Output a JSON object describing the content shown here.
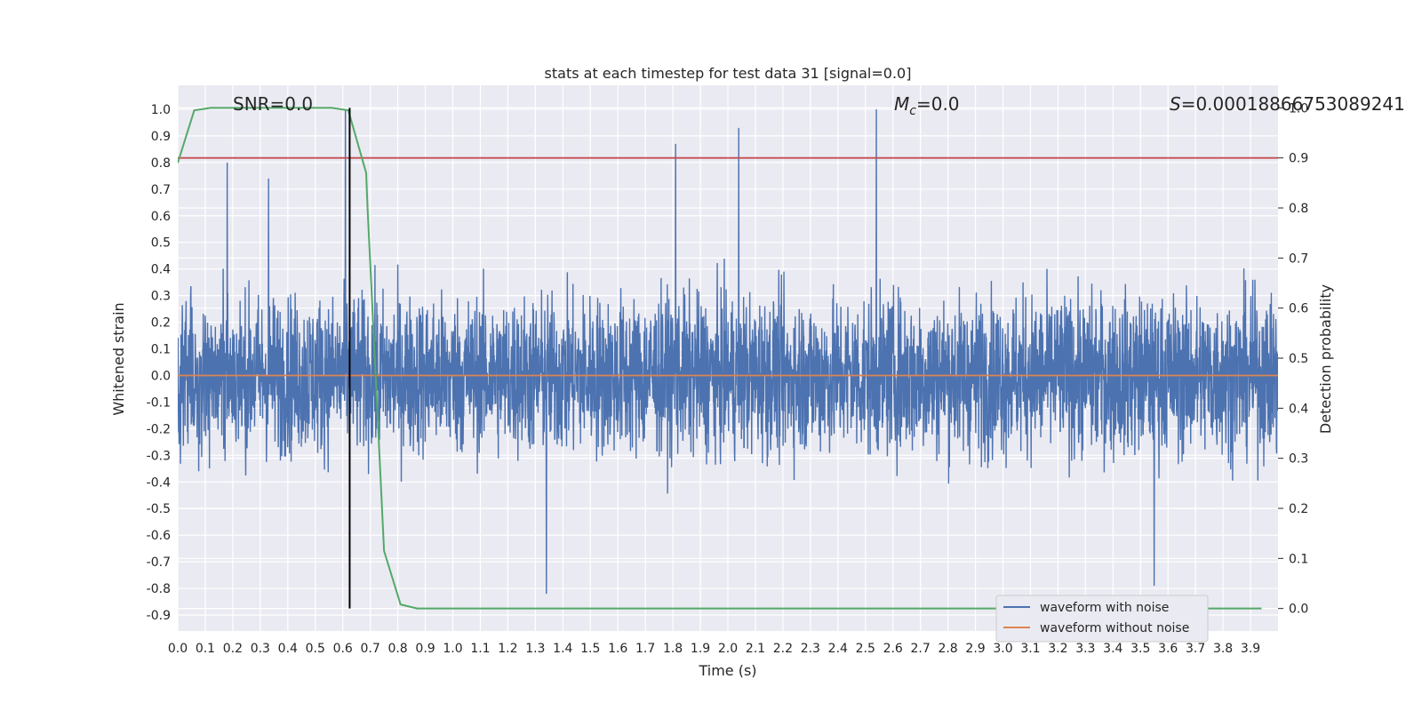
{
  "chart_data": {
    "type": "line",
    "title": "stats at each timestep for test data 31 [signal=0.0]",
    "xlabel": "Time (s)",
    "ylabel": "Whitened strain",
    "y2label": "Detection probability",
    "xlim": [
      0.0,
      4.0
    ],
    "ylim": [
      -0.96,
      1.09
    ],
    "y2lim": [
      -0.045,
      1.045
    ],
    "x_ticks": [
      "0.0",
      "0.1",
      "0.2",
      "0.3",
      "0.4",
      "0.5",
      "0.6",
      "0.7",
      "0.8",
      "0.9",
      "1.0",
      "1.1",
      "1.2",
      "1.3",
      "1.4",
      "1.5",
      "1.6",
      "1.7",
      "1.8",
      "1.9",
      "2.0",
      "2.1",
      "2.2",
      "2.3",
      "2.4",
      "2.5",
      "2.6",
      "2.7",
      "2.8",
      "2.9",
      "3.0",
      "3.1",
      "3.2",
      "3.3",
      "3.4",
      "3.5",
      "3.6",
      "3.7",
      "3.8",
      "3.9"
    ],
    "y_ticks": [
      "1.0",
      "0.9",
      "0.8",
      "0.7",
      "0.6",
      "0.5",
      "0.4",
      "0.3",
      "0.2",
      "0.1",
      "0.0",
      "-0.1",
      "-0.2",
      "-0.3",
      "-0.4",
      "-0.5",
      "-0.6",
      "-0.7",
      "-0.8",
      "-0.9"
    ],
    "y2_ticks": [
      "1.0",
      "0.9",
      "0.8",
      "0.7",
      "0.6",
      "0.5",
      "0.4",
      "0.3",
      "0.2",
      "0.1",
      "0.0"
    ],
    "grid": true,
    "legend_position": "bottom-right",
    "series": [
      {
        "name": "waveform with noise",
        "axis": "left",
        "color": "#4c72b0",
        "noise_amplitude": 0.42,
        "notable_peaks": [
          {
            "x": 0.18,
            "y": 0.8
          },
          {
            "x": 0.33,
            "y": 0.74
          },
          {
            "x": 0.61,
            "y": 1.0
          },
          {
            "x": 1.81,
            "y": 0.87
          },
          {
            "x": 2.04,
            "y": 0.93
          },
          {
            "x": 2.54,
            "y": 1.0
          },
          {
            "x": 1.34,
            "y": -0.82
          },
          {
            "x": 3.55,
            "y": -0.79
          }
        ]
      },
      {
        "name": "waveform without noise",
        "axis": "left",
        "color": "#dd8452",
        "constant": 0.0
      },
      {
        "name": "",
        "axis": "right",
        "color": "#55a868",
        "x": [
          0.0,
          0.06,
          0.12,
          0.2,
          0.3,
          0.4,
          0.5,
          0.56,
          0.62,
          0.685,
          0.69,
          0.72,
          0.75,
          0.81,
          0.87,
          0.93,
          3.94
        ],
        "values": [
          0.89,
          0.995,
          1.0,
          1.0,
          1.0,
          1.0,
          1.0,
          1.0,
          0.995,
          0.87,
          0.8,
          0.46,
          0.115,
          0.008,
          0.0,
          0.0,
          0.0
        ]
      },
      {
        "name": "",
        "axis": "right",
        "color": "#c44e52",
        "constant": 0.9
      }
    ],
    "marker": {
      "x": 0.625,
      "color": "#000000"
    },
    "annotations": [
      {
        "id": "snr",
        "text": "SNR=0.0"
      },
      {
        "id": "mc",
        "base": "M",
        "sub": "c",
        "text": "=0.0"
      },
      {
        "id": "s",
        "base": "S",
        "text": "=0.00018866753089241"
      }
    ],
    "colors": {
      "background": "#eaeaf2",
      "grid": "#ffffff",
      "text": "#262626"
    }
  }
}
